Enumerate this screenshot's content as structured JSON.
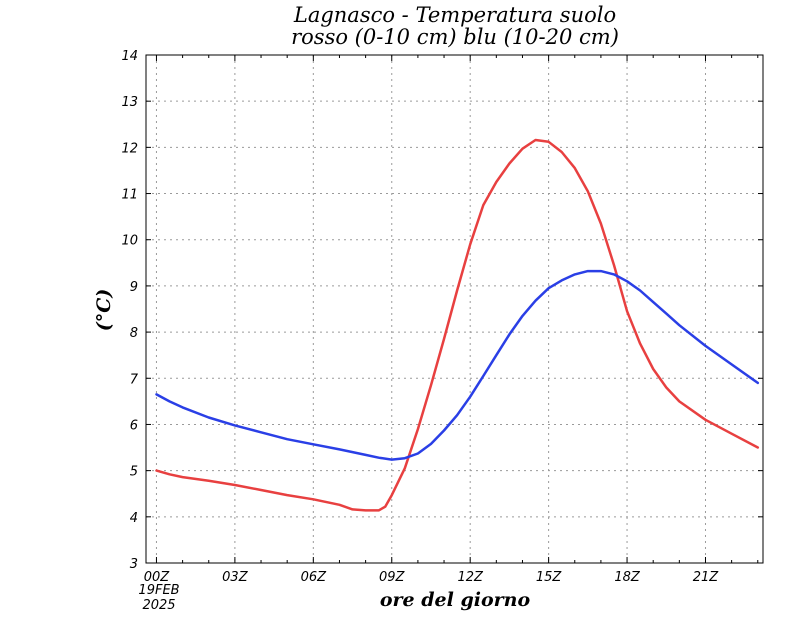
{
  "chart_data": {
    "type": "line",
    "title": [
      "Lagnasco - Temperatura suolo",
      "rosso (0-10 cm) blu (10-20 cm)"
    ],
    "xlabel": "ore del giorno",
    "ylabel": "(°C)",
    "xlim": [
      -0.4,
      23.2
    ],
    "ylim": [
      3,
      14
    ],
    "yticks": [
      3,
      4,
      5,
      6,
      7,
      8,
      9,
      10,
      11,
      12,
      13,
      14
    ],
    "xticks": [
      {
        "x": 0,
        "label": "00Z"
      },
      {
        "x": 3,
        "label": "03Z"
      },
      {
        "x": 6,
        "label": "06Z"
      },
      {
        "x": 9,
        "label": "09Z"
      },
      {
        "x": 12,
        "label": "12Z"
      },
      {
        "x": 15,
        "label": "15Z"
      },
      {
        "x": 18,
        "label": "18Z"
      },
      {
        "x": 21,
        "label": "21Z"
      }
    ],
    "date_label": [
      "19FEB",
      "2025"
    ],
    "grid": true,
    "series": [
      {
        "color": "#e84040",
        "x": [
          0,
          0.5,
          1,
          2,
          3,
          4,
          5,
          6,
          7,
          7.5,
          8,
          8.5,
          8.75,
          9,
          9.5,
          10,
          10.5,
          11,
          11.5,
          12,
          12.5,
          13,
          13.5,
          14,
          14.5,
          15,
          15.5,
          16,
          16.5,
          17,
          17.5,
          18,
          18.5,
          19,
          19.5,
          20,
          21,
          22,
          23
        ],
        "values": [
          5.0,
          4.92,
          4.86,
          4.78,
          4.69,
          4.58,
          4.47,
          4.38,
          4.26,
          4.16,
          4.14,
          4.14,
          4.22,
          4.47,
          5.05,
          5.9,
          6.85,
          7.85,
          8.9,
          9.9,
          10.75,
          11.25,
          11.65,
          11.97,
          12.16,
          12.12,
          11.9,
          11.55,
          11.05,
          10.35,
          9.45,
          8.45,
          7.75,
          7.2,
          6.8,
          6.5,
          6.1,
          5.8,
          5.5
        ]
      },
      {
        "color": "#2a3fe6",
        "x": [
          0,
          0.5,
          1,
          2,
          3,
          4,
          5,
          6,
          7,
          8,
          8.5,
          9,
          9.5,
          10,
          10.5,
          11,
          11.5,
          12,
          12.5,
          13,
          13.5,
          14,
          14.5,
          15,
          15.5,
          16,
          16.5,
          17,
          17.5,
          18,
          18.5,
          19,
          19.5,
          20,
          21,
          22,
          23
        ],
        "values": [
          6.65,
          6.5,
          6.37,
          6.15,
          5.98,
          5.83,
          5.68,
          5.57,
          5.46,
          5.34,
          5.28,
          5.24,
          5.27,
          5.37,
          5.58,
          5.87,
          6.2,
          6.6,
          7.05,
          7.5,
          7.95,
          8.35,
          8.68,
          8.95,
          9.12,
          9.25,
          9.32,
          9.32,
          9.25,
          9.1,
          8.9,
          8.65,
          8.4,
          8.15,
          7.7,
          7.3,
          6.9
        ]
      }
    ]
  }
}
